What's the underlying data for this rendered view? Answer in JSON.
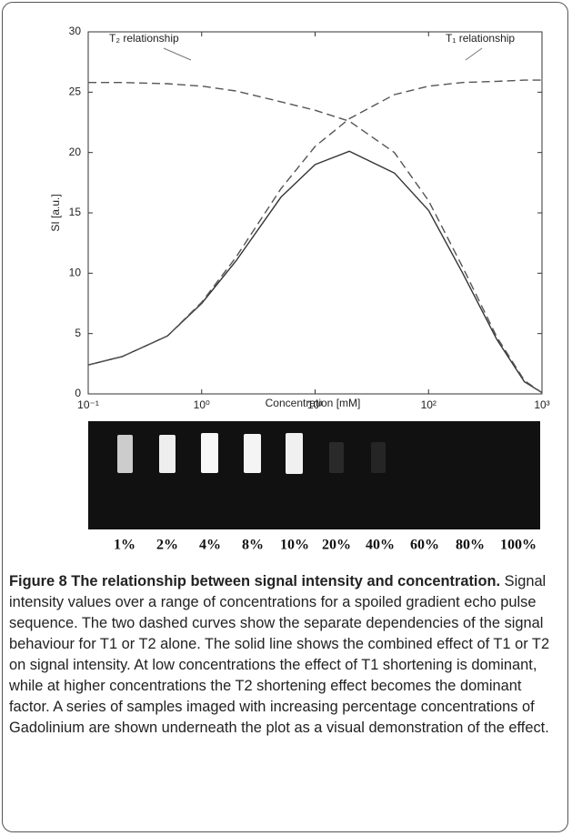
{
  "chart_data": {
    "type": "line",
    "xlabel": "Concentration [mM]",
    "ylabel": "SI [a.u.]",
    "x": [
      0.1,
      0.2,
      0.5,
      1,
      2,
      5,
      10,
      20,
      50,
      100,
      200,
      400,
      700,
      1000
    ],
    "series": [
      {
        "color": "#333333",
        "dash": "none",
        "values": [
          2.4,
          3.1,
          4.8,
          7.5,
          11,
          16.3,
          19,
          20.1,
          18.3,
          15.2,
          10,
          4.5,
          1,
          0.1
        ]
      },
      {
        "color": "#555555",
        "dash": "9,5",
        "values": [
          2.4,
          3.1,
          4.8,
          7.6,
          11.3,
          17,
          20.5,
          22.8,
          24.8,
          25.5,
          25.8,
          25.9,
          26,
          26
        ]
      },
      {
        "color": "#555555",
        "dash": "9,5",
        "values": [
          25.8,
          25.8,
          25.7,
          25.5,
          25.1,
          24.2,
          23.5,
          22.6,
          20,
          16,
          10.5,
          4.7,
          1.1,
          0.1
        ]
      }
    ],
    "xscale": "log",
    "xlim": [
      0.1,
      1000
    ],
    "xticks": [
      {
        "value": 0.1,
        "label": "10⁻¹"
      },
      {
        "value": 1,
        "label": "10⁰"
      },
      {
        "value": 10,
        "label": "10¹"
      },
      {
        "value": 100,
        "label": "10²"
      },
      {
        "value": 1000,
        "label": "10³"
      }
    ],
    "ylim": [
      0,
      30
    ],
    "yticks": [
      0,
      5,
      10,
      15,
      20,
      25,
      30
    ],
    "annotations": [
      "T₂ relationship",
      "T₁ relationship"
    ]
  },
  "phantom": {
    "labels": [
      "1%",
      "2%",
      "4%",
      "8%",
      "10%",
      "20%",
      "40%",
      "60%",
      "80%",
      "100%"
    ]
  },
  "caption": {
    "title": "Figure 8 The relationship between signal intensity and concentration.",
    "text": "Signal intensity values over a range of concentrations for a spoiled gradient echo pulse sequence. The two dashed curves show the separate dependencies of the signal behaviour for T1 or T2 alone. The solid line shows the combined effect of T1 or T2 on signal intensity. At low concentrations the effect of T1 shortening is dominant, while at higher concentrations the T2 shortening effect becomes the dominant factor. A series of samples imaged with increasing percentage concentrations of Gadolinium are shown underneath the plot as a visual demonstration of the effect."
  }
}
